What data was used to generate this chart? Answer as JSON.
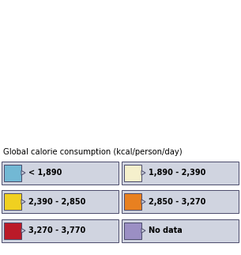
{
  "title": "Global calorie consumption (kcal/person/day)",
  "ocean_color": "#cce5f5",
  "border_color": "#555555",
  "border_width": 0.3,
  "figsize": [
    3.05,
    3.22
  ],
  "dpi": 100,
  "legend_bg": "#d0d4e0",
  "legend_border": "#4a4a6a",
  "swatch_border": "#4a4a6a",
  "categories": [
    {
      "label": "< 1,890",
      "color": "#72b8d4"
    },
    {
      "label": "1,890 - 2,390",
      "color": "#f5f0cc"
    },
    {
      "label": "2,390 - 2,850",
      "color": "#f0d020"
    },
    {
      "label": "2,850 - 3,270",
      "color": "#e88020"
    },
    {
      "label": "3,270 - 3,770",
      "color": "#bb1a28"
    },
    {
      "label": "No data",
      "color": "#9b8fc4"
    }
  ],
  "country_colors": {
    "Canada": "#bb1a28",
    "United States of America": "#bb1a28",
    "Mexico": "#e88020",
    "Guatemala": "#e88020",
    "Belize": "#e88020",
    "Honduras": "#e88020",
    "El Salvador": "#e88020",
    "Nicaragua": "#f0d020",
    "Costa Rica": "#e88020",
    "Panama": "#e88020",
    "Cuba": "#e88020",
    "Jamaica": "#e88020",
    "Haiti": "#f0d020",
    "Dominican Republic": "#e88020",
    "Trinidad and Tobago": "#e88020",
    "Colombia": "#f0d020",
    "Venezuela": "#e88020",
    "Guyana": "#f0d020",
    "Suriname": "#f0d020",
    "Fr. Guiana": "#f0d020",
    "Ecuador": "#f0d020",
    "Peru": "#f0d020",
    "Brazil": "#bb1a28",
    "Bolivia": "#f0d020",
    "Paraguay": "#f0d020",
    "Chile": "#e88020",
    "Argentina": "#bb1a28",
    "Uruguay": "#bb1a28",
    "Falkland Is.": "#bb1a28",
    "Greenland": "#9b8fc4",
    "Iceland": "#e88020",
    "Norway": "#e88020",
    "Sweden": "#e88020",
    "Finland": "#e88020",
    "Denmark": "#e88020",
    "United Kingdom": "#e88020",
    "Ireland": "#e88020",
    "Netherlands": "#bb1a28",
    "Belgium": "#bb1a28",
    "Luxembourg": "#bb1a28",
    "France": "#bb1a28",
    "Germany": "#bb1a28",
    "Switzerland": "#bb1a28",
    "Austria": "#bb1a28",
    "Spain": "#bb1a28",
    "Portugal": "#bb1a28",
    "Italy": "#bb1a28",
    "Malta": "#bb1a28",
    "Poland": "#bb1a28",
    "Czech Rep.": "#bb1a28",
    "Czechia": "#bb1a28",
    "Slovakia": "#bb1a28",
    "Hungary": "#bb1a28",
    "Romania": "#bb1a28",
    "Bulgaria": "#bb1a28",
    "Greece": "#bb1a28",
    "Albania": "#e88020",
    "Macedonia": "#e88020",
    "North Macedonia": "#e88020",
    "Serbia": "#bb1a28",
    "Croatia": "#bb1a28",
    "Bosnia and Herz.": "#bb1a28",
    "Slovenia": "#bb1a28",
    "Montenegro": "#e88020",
    "Kosovo": "#e88020",
    "Estonia": "#e88020",
    "Latvia": "#e88020",
    "Lithuania": "#e88020",
    "Belarus": "#bb1a28",
    "Ukraine": "#bb1a28",
    "Moldova": "#e88020",
    "Russia": "#e88020",
    "Turkey": "#e88020",
    "Georgia": "#f0d020",
    "Armenia": "#f0d020",
    "Azerbaijan": "#f0d020",
    "Kazakhstan": "#e88020",
    "Uzbekistan": "#f0d020",
    "Turkmenistan": "#f0d020",
    "Kyrgyzstan": "#f0d020",
    "Tajikistan": "#f0d020",
    "Afghanistan": "#f0d020",
    "Pakistan": "#f0d020",
    "India": "#f0d020",
    "Nepal": "#f0d020",
    "Bhutan": "#f0d020",
    "Bangladesh": "#f0d020",
    "Sri Lanka": "#f0d020",
    "Myanmar": "#f0d020",
    "Thailand": "#f0d020",
    "Laos": "#f0d020",
    "Vietnam": "#f0d020",
    "Cambodia": "#f0d020",
    "Malaysia": "#e88020",
    "Indonesia": "#f0d020",
    "Philippines": "#f0d020",
    "China": "#e88020",
    "Mongolia": "#f0d020",
    "North Korea": "#f5f0cc",
    "South Korea": "#e88020",
    "Japan": "#e88020",
    "Taiwan": "#e88020",
    "Iran": "#e88020",
    "Iraq": "#e88020",
    "Syria": "#e88020",
    "Lebanon": "#bb1a28",
    "Israel": "#bb1a28",
    "Palestine": "#e88020",
    "West Bank": "#e88020",
    "Jordan": "#e88020",
    "Saudi Arabia": "#e88020",
    "Yemen": "#f0d020",
    "Oman": "#e88020",
    "United Arab Emirates": "#e88020",
    "Qatar": "#e88020",
    "Kuwait": "#e88020",
    "Bahrain": "#e88020",
    "Cyprus": "#bb1a28",
    "Morocco": "#e88020",
    "Algeria": "#e88020",
    "Tunisia": "#e88020",
    "Libya": "#e88020",
    "Egypt": "#e88020",
    "Sudan": "#f0d020",
    "S. Sudan": "#f0d020",
    "South Sudan": "#f0d020",
    "Ethiopia": "#f0d020",
    "Eritrea": "#f0d020",
    "Djibouti": "#f0d020",
    "Somalia": "#f5f0cc",
    "Kenya": "#f0d020",
    "Uganda": "#f0d020",
    "Tanzania": "#f0d020",
    "Rwanda": "#f0d020",
    "Burundi": "#f5f0cc",
    "Dem. Rep. Congo": "#72b8d4",
    "Congo": "#72b8d4",
    "Central African Rep.": "#72b8d4",
    "Cameroon": "#f0d020",
    "Nigeria": "#f0d020",
    "Niger": "#f5f0cc",
    "Mali": "#f0d020",
    "Burkina Faso": "#f0d020",
    "Senegal": "#f0d020",
    "Gambia": "#f0d020",
    "Guinea-Bissau": "#f0d020",
    "Guinea": "#f0d020",
    "Sierra Leone": "#f5f0cc",
    "Liberia": "#f5f0cc",
    "Ivory Coast": "#f0d020",
    "Côte d'Ivoire": "#f0d020",
    "Ghana": "#f0d020",
    "Togo": "#f0d020",
    "Benin": "#f0d020",
    "Mauritania": "#f0d020",
    "Chad": "#f5f0cc",
    "Gabon": "#f0d020",
    "Eq. Guinea": "#f0d020",
    "Equatorial Guinea": "#f0d020",
    "Sao Tome and Principe": "#f0d020",
    "Angola": "#f0d020",
    "Zambia": "#f0d020",
    "Zimbabwe": "#f0d020",
    "Mozambique": "#f0d020",
    "Malawi": "#f0d020",
    "Madagascar": "#f0d020",
    "Namibia": "#e88020",
    "Botswana": "#f0d020",
    "South Africa": "#e88020",
    "Lesotho": "#f0d020",
    "Swaziland": "#f0d020",
    "eSwatini": "#f0d020",
    "Australia": "#e88020",
    "New Zealand": "#e88020",
    "Papua New Guinea": "#f0d020",
    "Fiji": "#f0d020",
    "Solomon Is.": "#f0d020",
    "Vanuatu": "#f0d020",
    "New Caledonia": "#e88020"
  },
  "default_color": "#e88020",
  "map_xlim": [
    -180,
    180
  ],
  "map_ylim": [
    -58,
    85
  ]
}
